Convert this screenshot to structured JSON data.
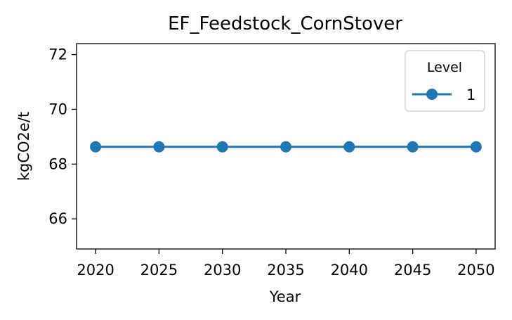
{
  "chart_data": {
    "type": "line",
    "title": "EF_Feedstock_CornStover",
    "xlabel": "Year",
    "ylabel": "kgCO2e/t",
    "x": [
      2020,
      2025,
      2030,
      2035,
      2040,
      2045,
      2050
    ],
    "xticks": [
      "2020",
      "2025",
      "2030",
      "2035",
      "2040",
      "2045",
      "2050"
    ],
    "yticks": [
      "66",
      "68",
      "70",
      "72"
    ],
    "xlim": [
      2018.5,
      2051.5
    ],
    "ylim": [
      64.9,
      72.4
    ],
    "series": [
      {
        "name": "1",
        "color": "#1f77b4",
        "marker": "circle",
        "values": [
          68.63,
          68.63,
          68.63,
          68.63,
          68.63,
          68.63,
          68.63
        ]
      }
    ],
    "legend": {
      "title": "Level",
      "position": "top-right"
    },
    "grid": false
  }
}
